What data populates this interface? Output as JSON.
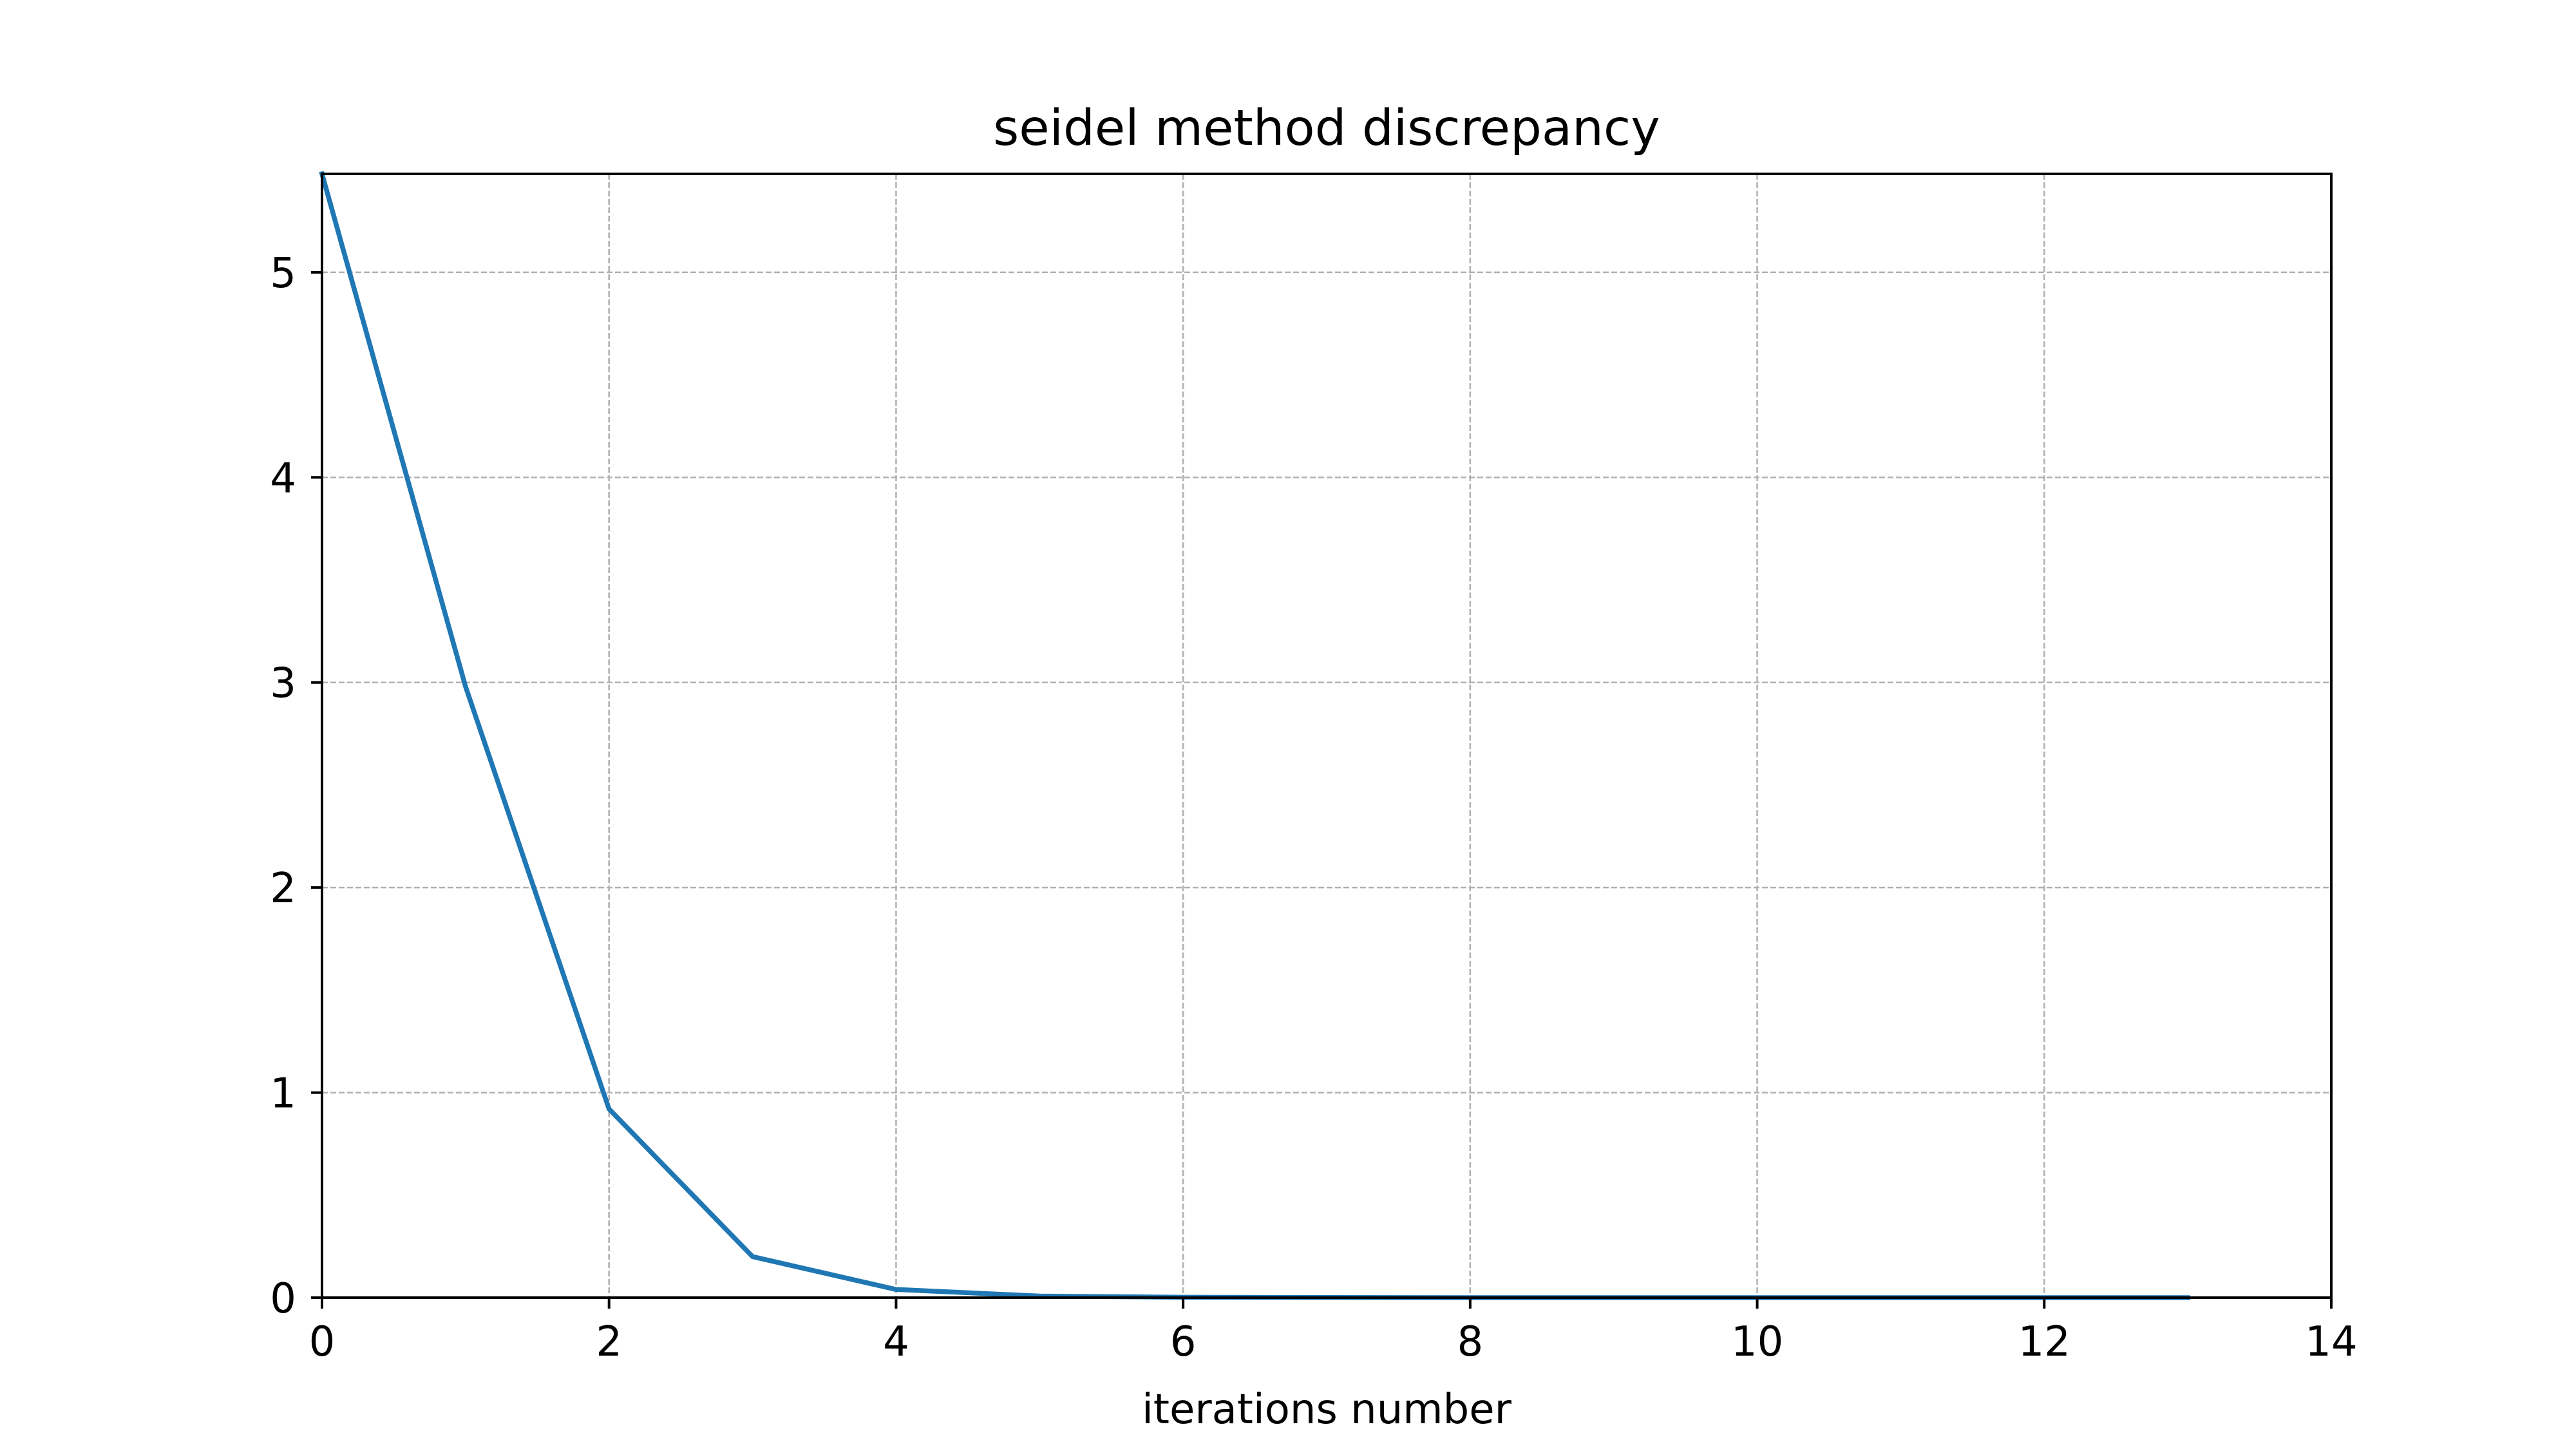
{
  "chart_data": {
    "type": "line",
    "title": "seidel method discrepancy",
    "xlabel": "iterations number",
    "ylabel": "",
    "xlim": [
      0,
      14
    ],
    "ylim": [
      0,
      5.48
    ],
    "xticks": [
      0,
      2,
      4,
      6,
      8,
      10,
      12,
      14
    ],
    "yticks": [
      0,
      1,
      2,
      3,
      4,
      5
    ],
    "xtick_labels": [
      "0",
      "2",
      "4",
      "6",
      "8",
      "10",
      "12",
      "14"
    ],
    "ytick_labels": [
      "0",
      "1",
      "2",
      "3",
      "4",
      "5"
    ],
    "grid": true,
    "legend": "none",
    "series": [
      {
        "x": [
          0,
          1,
          2,
          3,
          4,
          5,
          6,
          7,
          8,
          9,
          10,
          11,
          12,
          13
        ],
        "y": [
          5.48,
          2.98,
          0.92,
          0.2,
          0.04,
          0.008,
          0.002,
          0.0005,
          0.0001,
          3e-05,
          1e-05,
          2e-06,
          5e-07,
          1e-07
        ],
        "color": "#1f77b4"
      }
    ]
  }
}
